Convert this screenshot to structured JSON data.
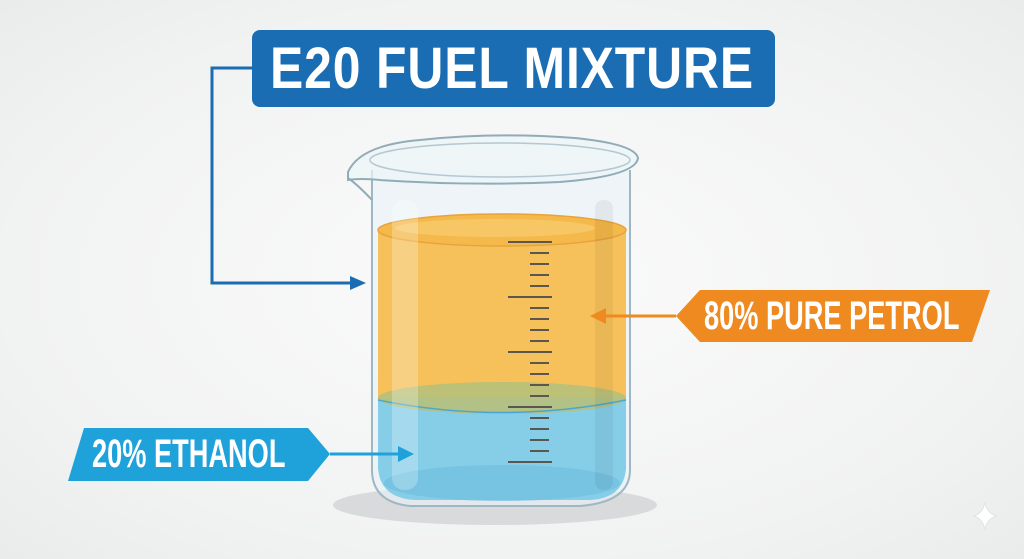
{
  "title": "E20 FUEL MIXTURE",
  "labels": {
    "petrol": "80% PURE PETROL",
    "ethanol": "20% ETHANOL"
  },
  "mixture": {
    "petrol_percent": 80,
    "ethanol_percent": 20
  },
  "colors": {
    "title_bg": "#1a6db3",
    "petrol_label": "#ee8a1f",
    "petrol_liquid": "#f6c15a",
    "ethanol_label": "#1ea2d9",
    "ethanol_liquid": "#86cde8"
  },
  "icons": [
    "arrow-right-icon",
    "arrow-left-icon",
    "sparkle-icon"
  ]
}
